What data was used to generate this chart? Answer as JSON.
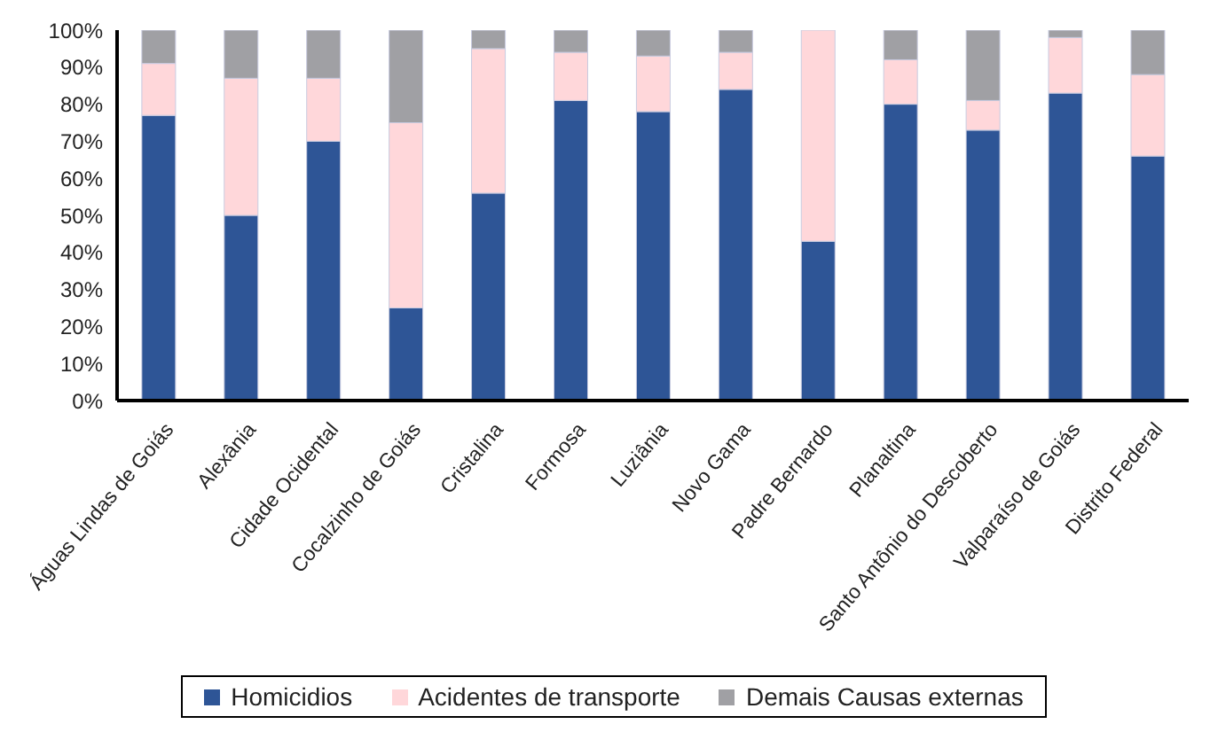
{
  "chart_data": {
    "type": "bar",
    "stacked": true,
    "categories": [
      "Águas Lindas de Goiás",
      "Alexânia",
      "Cidade Ocidental",
      "Cocalzinho de Goiás",
      "Cristalina",
      "Formosa",
      "Luziânia",
      "Novo Gama",
      "Padre Bernardo",
      "Planaltina",
      "Santo Antônio do Descoberto",
      "Valparaíso de Goiás",
      "Distrito Federal"
    ],
    "series": [
      {
        "name": "Homicidios",
        "color": "#2e5596",
        "values": [
          77,
          50,
          70,
          25,
          56,
          81,
          78,
          84,
          43,
          80,
          73,
          83,
          66
        ]
      },
      {
        "name": "Acidentes de transporte",
        "color": "#ffd7da",
        "values": [
          14,
          37,
          17,
          50,
          39,
          13,
          15,
          10,
          57,
          12,
          8,
          15,
          22
        ]
      },
      {
        "name": "Demais Causas externas",
        "color": "#a0a0a4",
        "values": [
          9,
          13,
          13,
          25,
          5,
          6,
          7,
          6,
          0,
          8,
          19,
          2,
          12
        ]
      }
    ],
    "ylim": [
      0,
      100
    ],
    "yticks": [
      {
        "value": 0,
        "label": "0%"
      },
      {
        "value": 10,
        "label": "10%"
      },
      {
        "value": 20,
        "label": "20%"
      },
      {
        "value": 30,
        "label": "30%"
      },
      {
        "value": 40,
        "label": "40%"
      },
      {
        "value": 50,
        "label": "50%"
      },
      {
        "value": 60,
        "label": "60%"
      },
      {
        "value": 70,
        "label": "70%"
      },
      {
        "value": 80,
        "label": "80%"
      },
      {
        "value": 90,
        "label": "90%"
      },
      {
        "value": 100,
        "label": "100%"
      }
    ],
    "grid": false,
    "legend": "bottom"
  }
}
